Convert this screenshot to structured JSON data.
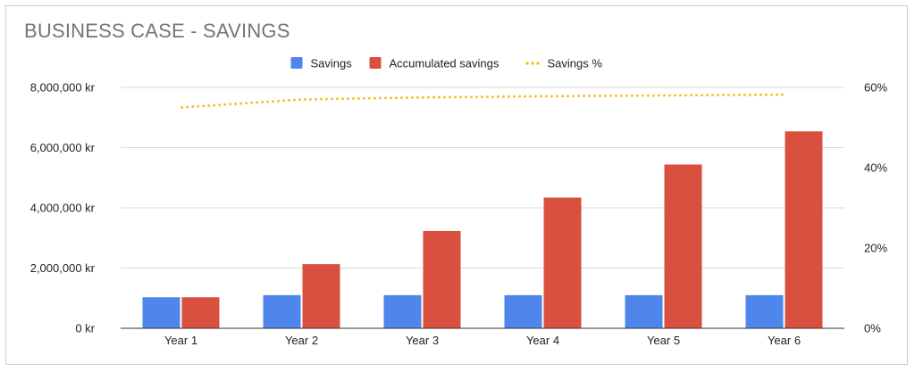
{
  "chart_data": {
    "type": "bar",
    "title": "BUSINESS CASE - SAVINGS",
    "categories": [
      "Year 1",
      "Year 2",
      "Year 3",
      "Year 4",
      "Year 5",
      "Year 6"
    ],
    "series": [
      {
        "name": "Savings",
        "kind": "bar",
        "axis": "left",
        "color": "#4f86ec",
        "values": [
          1030000,
          1100000,
          1100000,
          1100000,
          1100000,
          1100000
        ]
      },
      {
        "name": "Accumulated savings",
        "kind": "bar",
        "axis": "left",
        "color": "#d9503f",
        "values": [
          1030000,
          2130000,
          3230000,
          4340000,
          5440000,
          6540000
        ]
      },
      {
        "name": "Savings %",
        "kind": "line",
        "style": "dotted",
        "axis": "right",
        "color": "#f2b90f",
        "values": [
          55,
          57,
          57.5,
          57.8,
          58,
          58.2
        ]
      }
    ],
    "y_left": {
      "ylim": [
        0,
        8000000
      ],
      "ticks": [
        "0 kr",
        "2,000,000 kr",
        "4,000,000 kr",
        "6,000,000 kr",
        "8,000,000 kr"
      ]
    },
    "y_right": {
      "ylim": [
        0,
        60
      ],
      "ticks": [
        "0%",
        "20%",
        "40%",
        "60%"
      ]
    },
    "legend_position": "top-center",
    "grid": true
  }
}
